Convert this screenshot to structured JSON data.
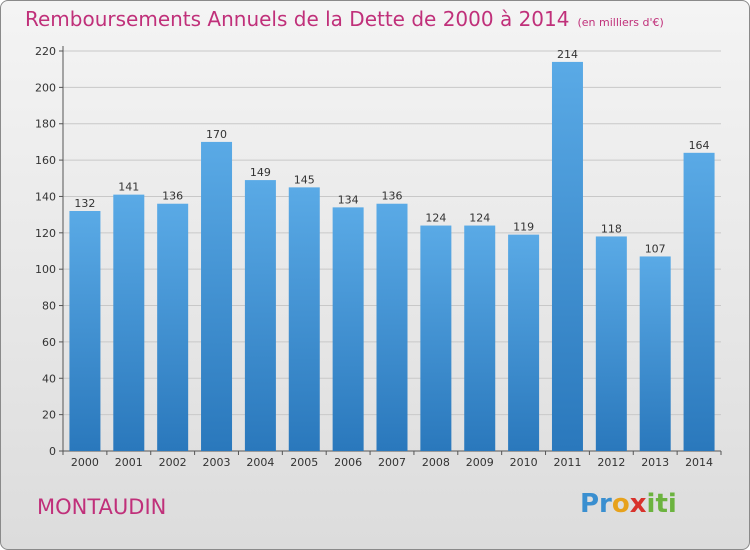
{
  "title": "Remboursements Annuels de la Dette de 2000 à 2014",
  "unit": "(en milliers d'€)",
  "city": "MONTAUDIN",
  "logo": {
    "letters": [
      "Pr",
      "o",
      "x",
      "iti"
    ]
  },
  "colors": {
    "title": "#c0307a",
    "bar_top": "#5aaae6",
    "bar_bottom": "#2a78bc",
    "grid": "#c8c8c8"
  },
  "chart_data": {
    "type": "bar",
    "categories": [
      "2000",
      "2001",
      "2002",
      "2003",
      "2004",
      "2005",
      "2006",
      "2007",
      "2008",
      "2009",
      "2010",
      "2011",
      "2012",
      "2013",
      "2014"
    ],
    "values": [
      132,
      141,
      136,
      170,
      149,
      145,
      134,
      136,
      124,
      124,
      119,
      214,
      118,
      107,
      164
    ],
    "ylim": [
      0,
      220
    ],
    "yticks": [
      0,
      20,
      40,
      60,
      80,
      100,
      120,
      140,
      160,
      180,
      200,
      220
    ],
    "grid": true,
    "xlabel": "",
    "ylabel": ""
  }
}
